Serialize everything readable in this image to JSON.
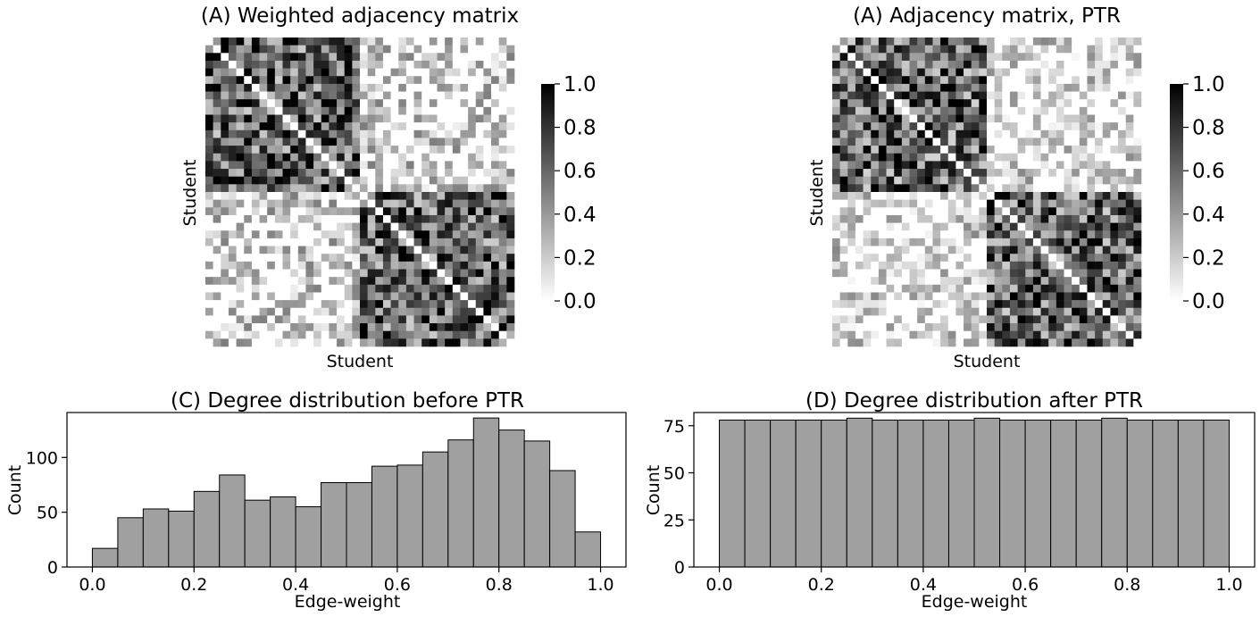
{
  "chart_data": [
    {
      "type": "heatmap",
      "title": "(A) Weighted adjacency matrix",
      "xlabel": "Student",
      "ylabel": "Student",
      "size": 40,
      "groups": 2,
      "within_group_mean": 0.65,
      "between_group_mean": 0.15,
      "diagonal_value": 0.0,
      "colormap": "white-to-black",
      "colorbar": {
        "range": [
          0.0,
          1.0
        ],
        "ticks": [
          "0.0",
          "0.2",
          "0.4",
          "0.6",
          "0.8",
          "1.0"
        ]
      }
    },
    {
      "type": "heatmap",
      "title": "(A) Adjacency matrix, PTR",
      "xlabel": "Student",
      "ylabel": "Student",
      "size": 40,
      "groups": 2,
      "within_group_mean": 0.62,
      "between_group_mean": 0.12,
      "diagonal_value": 0.0,
      "colormap": "white-to-black",
      "colorbar": {
        "range": [
          0.0,
          1.0
        ],
        "ticks": [
          "0.0",
          "0.2",
          "0.4",
          "0.6",
          "0.8",
          "1.0"
        ]
      }
    },
    {
      "type": "bar",
      "title": "(C) Degree distribution before PTR",
      "xlabel": "Edge-weight",
      "ylabel": "Count",
      "bin_edges": [
        0.0,
        0.05,
        0.1,
        0.15,
        0.2,
        0.25,
        0.3,
        0.35,
        0.4,
        0.45,
        0.5,
        0.55,
        0.6,
        0.65,
        0.7,
        0.75,
        0.8,
        0.85,
        0.9,
        0.95,
        1.0
      ],
      "values": [
        17,
        45,
        53,
        51,
        69,
        84,
        61,
        64,
        55,
        77,
        77,
        92,
        93,
        105,
        116,
        136,
        125,
        115,
        88,
        32
      ],
      "xlim": [
        -0.05,
        1.05
      ],
      "ylim": [
        0,
        141
      ],
      "xticks": [
        "0.0",
        "0.2",
        "0.4",
        "0.6",
        "0.8",
        "1.0"
      ],
      "yticks": [
        "0",
        "50",
        "100"
      ],
      "bar_color": "#a0a0a0"
    },
    {
      "type": "bar",
      "title": "(D) Degree distribution after PTR",
      "xlabel": "Edge-weight",
      "ylabel": "Count",
      "bin_edges": [
        0.0,
        0.05,
        0.1,
        0.15,
        0.2,
        0.25,
        0.3,
        0.35,
        0.4,
        0.45,
        0.5,
        0.55,
        0.6,
        0.65,
        0.7,
        0.75,
        0.8,
        0.85,
        0.9,
        0.95,
        1.0
      ],
      "values": [
        78,
        78,
        78,
        78,
        78,
        79,
        78,
        78,
        78,
        78,
        79,
        78,
        78,
        78,
        78,
        79,
        78,
        78,
        78,
        78
      ],
      "xlim": [
        -0.05,
        1.05
      ],
      "ylim": [
        0,
        82
      ],
      "xticks": [
        "0.0",
        "0.2",
        "0.4",
        "0.6",
        "0.8",
        "1.0"
      ],
      "yticks": [
        "0",
        "25",
        "50",
        "75"
      ],
      "bar_color": "#a0a0a0"
    }
  ]
}
